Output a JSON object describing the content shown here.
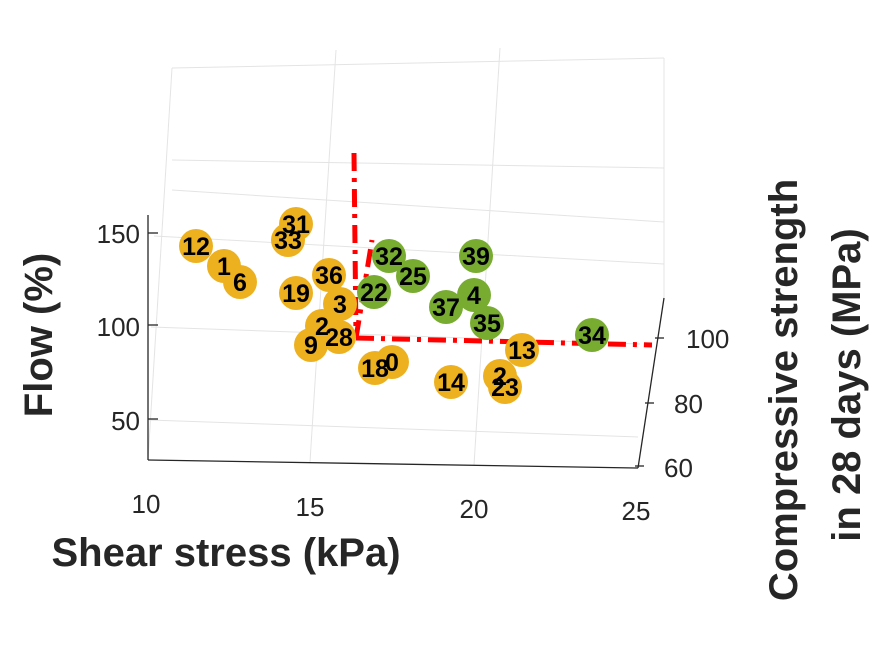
{
  "chart_data": {
    "type": "scatter",
    "view": "3d",
    "grid": true,
    "axes": {
      "x": {
        "label": "Shear stress (kPa)",
        "range": [
          10,
          25
        ],
        "ticks": [
          10,
          15,
          20,
          25
        ]
      },
      "y": {
        "label": "Compressive strength in 28 days (MPa)",
        "label_lines": [
          "Compressive strength",
          "in 28 days (MPa)"
        ],
        "range": [
          60,
          110
        ],
        "ticks": [
          60,
          80,
          100
        ]
      },
      "z": {
        "label": "Flow (%)",
        "range": [
          25,
          150
        ],
        "ticks": [
          50,
          100,
          150
        ]
      }
    },
    "threshold_lines": {
      "color": "#ff0000",
      "style": "dash-dot"
    },
    "colors": {
      "group_a": "#edb120",
      "group_b": "#77ac30"
    },
    "points": [
      {
        "label": "12",
        "group": "a"
      },
      {
        "label": "1",
        "group": "a"
      },
      {
        "label": "6",
        "group": "a"
      },
      {
        "label": "33",
        "group": "a"
      },
      {
        "label": "31",
        "group": "a"
      },
      {
        "label": "36",
        "group": "a"
      },
      {
        "label": "19",
        "group": "a"
      },
      {
        "label": "3",
        "group": "a"
      },
      {
        "label": "2",
        "group": "a"
      },
      {
        "label": "28",
        "group": "a"
      },
      {
        "label": "9",
        "group": "a"
      },
      {
        "label": "0",
        "group": "a"
      },
      {
        "label": "18",
        "group": "a"
      },
      {
        "label": "14",
        "group": "a"
      },
      {
        "label": "23",
        "group": "a"
      },
      {
        "label": "2",
        "group": "a"
      },
      {
        "label": "13",
        "group": "a"
      },
      {
        "label": "32",
        "group": "b"
      },
      {
        "label": "25",
        "group": "b"
      },
      {
        "label": "22",
        "group": "b"
      },
      {
        "label": "39",
        "group": "b"
      },
      {
        "label": "37",
        "group": "b"
      },
      {
        "label": "4",
        "group": "b"
      },
      {
        "label": "35",
        "group": "b"
      },
      {
        "label": "34",
        "group": "b"
      }
    ]
  }
}
